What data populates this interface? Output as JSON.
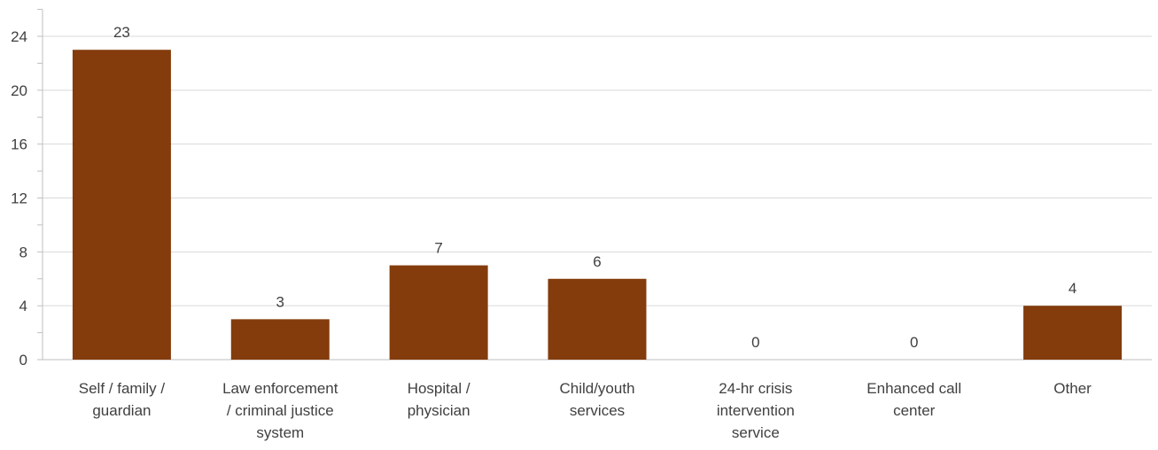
{
  "chart_data": {
    "type": "bar",
    "categories": [
      [
        "Self / family /",
        "guardian"
      ],
      [
        "Law enforcement",
        "/ criminal justice",
        "system"
      ],
      [
        "Hospital /",
        "physician"
      ],
      [
        "Child/youth",
        "services"
      ],
      [
        "24-hr crisis",
        "intervention",
        "service"
      ],
      [
        "Enhanced call",
        "center"
      ],
      [
        "Other"
      ]
    ],
    "values": [
      23,
      3,
      7,
      6,
      0,
      0,
      4
    ],
    "data_labels": [
      "23",
      "3",
      "7",
      "6",
      "0",
      "0",
      "4"
    ],
    "ylim": [
      0,
      24
    ],
    "y_ticks": [
      "0",
      "4",
      "8",
      "12",
      "16",
      "20",
      "24"
    ],
    "grid": true,
    "legend": "none",
    "colors": {
      "bar": "#843C0C",
      "grid": "#D9D9D9",
      "axis": "#BFBFBF",
      "text": "#404040"
    }
  }
}
